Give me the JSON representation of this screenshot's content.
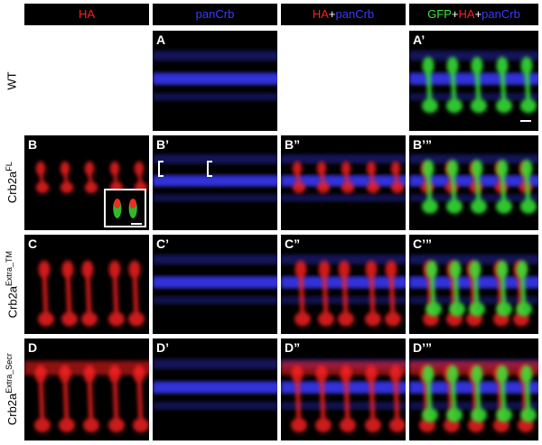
{
  "column_headers": [
    {
      "key": "ha",
      "parts": [
        {
          "text": "HA",
          "color": "red"
        }
      ]
    },
    {
      "key": "pancrb",
      "parts": [
        {
          "text": "panCrb",
          "color": "blue"
        }
      ]
    },
    {
      "key": "ha_pancrb",
      "parts": [
        {
          "text": "HA",
          "color": "red"
        },
        {
          "text": "+",
          "color": "white"
        },
        {
          "text": "panCrb",
          "color": "blue"
        }
      ]
    },
    {
      "key": "gfp_ha_pancrb",
      "parts": [
        {
          "text": "GFP",
          "color": "green"
        },
        {
          "text": "+",
          "color": "white"
        },
        {
          "text": "HA",
          "color": "red"
        },
        {
          "text": "+",
          "color": "white"
        },
        {
          "text": "panCrb",
          "color": "blue"
        }
      ]
    }
  ],
  "rows": [
    {
      "key": "wt",
      "label": "WT",
      "sup": "",
      "panels": [
        "",
        "A",
        "",
        "A’"
      ]
    },
    {
      "key": "fl",
      "label": "Crb2a",
      "sup": "FL",
      "panels": [
        "B",
        "B’",
        "B”",
        "B’”"
      ]
    },
    {
      "key": "tm",
      "label": "Crb2a",
      "sup": "Extra_TM",
      "panels": [
        "C",
        "C’",
        "C”",
        "C’”"
      ]
    },
    {
      "key": "secr",
      "label": "Crb2a",
      "sup": "Extra_Secr",
      "panels": [
        "D",
        "D’",
        "D”",
        "D’”"
      ]
    }
  ],
  "colors": {
    "ha": "#ff2020",
    "pancrb": "#3a3aff",
    "gfp": "#38e838",
    "header_bg": "#000000"
  }
}
